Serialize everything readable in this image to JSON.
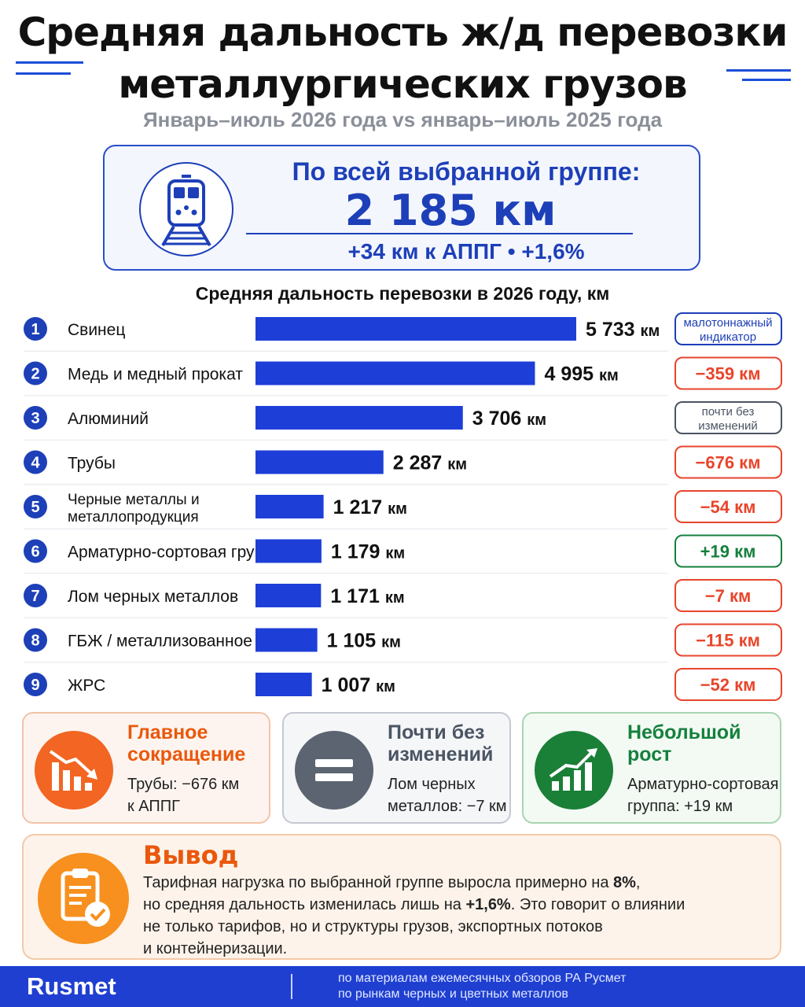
{
  "header": {
    "title_line1": "Средняя дальность ж/д перевозки",
    "title_line2": "металлургических грузов",
    "subtitle": "Январь–июль 2026 года vs январь–июль 2025 года"
  },
  "summary": {
    "label": "По всей выбранной группе:",
    "value": "2 185 км",
    "change": "+34 км к АППГ  •  +1,6%",
    "icon": "train-icon"
  },
  "chart_data": {
    "type": "bar",
    "orientation": "horizontal",
    "title": "Средняя дальность перевозки в 2026 году, км",
    "unit": "км",
    "categories": [
      "Свинец",
      "Медь и медный прокат",
      "Алюминий",
      "Трубы",
      "Черные металлы и металлопродукция",
      "Арматурно-сортовая группа",
      "Лом черных металлов",
      "ГБЖ / металлизованное сырье",
      "ЖРС"
    ],
    "category_lines": [
      [
        "Свинец"
      ],
      [
        "Медь и медный прокат"
      ],
      [
        "Алюминий"
      ],
      [
        "Трубы"
      ],
      [
        "Черные металлы и",
        "металлопродукция"
      ],
      [
        "Арматурно-сортовая группа"
      ],
      [
        "Лом черных металлов"
      ],
      [
        "ГБЖ / металлизованное сырье"
      ],
      [
        "ЖРС"
      ]
    ],
    "values": [
      5733,
      4995,
      3706,
      2287,
      1217,
      1179,
      1171,
      1105,
      1007
    ],
    "value_labels": [
      "5 733",
      "4 995",
      "3 706",
      "2 287",
      "1 217",
      "1 179",
      "1 171",
      "1 105",
      "1 007"
    ],
    "ranks": [
      "1",
      "2",
      "3",
      "4",
      "5",
      "6",
      "7",
      "8",
      "9"
    ],
    "changes": [
      {
        "lines": [
          "малотоннажный",
          "индикатор"
        ],
        "tone": "blue"
      },
      {
        "lines": [
          "−359 км"
        ],
        "tone": "red"
      },
      {
        "lines": [
          "почти без",
          "изменений"
        ],
        "tone": "gray"
      },
      {
        "lines": [
          "−676 км"
        ],
        "tone": "red"
      },
      {
        "lines": [
          "−54 км"
        ],
        "tone": "red"
      },
      {
        "lines": [
          "+19 км"
        ],
        "tone": "green"
      },
      {
        "lines": [
          "−7 км"
        ],
        "tone": "red"
      },
      {
        "lines": [
          "−115 км"
        ],
        "tone": "red"
      },
      {
        "lines": [
          "−52 км"
        ],
        "tone": "red"
      }
    ],
    "bar_color": "#1d3fd8",
    "colors": {
      "red": "#e8452c",
      "green": "#15803d",
      "gray": "#4b5563",
      "blue": "#1d3fb8"
    }
  },
  "cards": {
    "decline": {
      "title_l1": "Главное",
      "title_l2": "сокращение",
      "text_l1": "Трубы: −676 км",
      "text_l2": "к АППГ",
      "icon": "declining-chart-icon"
    },
    "stable": {
      "title_l1": "Почти без",
      "title_l2": "изменений",
      "text_l1": "Лом черных",
      "text_l2": "металлов: −7 км",
      "icon": "equals-icon"
    },
    "growth": {
      "title_l1": "Небольшой",
      "title_l2": "рост",
      "text_l1": "Арматурно-сортовая",
      "text_l2": "группа: +19 км",
      "icon": "growth-chart-icon"
    }
  },
  "conclusion": {
    "heading": "Вывод",
    "line1_a": "Тарифная нагрузка по выбранной группе выросла примерно на ",
    "line1_b": "8%",
    "line1_c": ",",
    "line2_a": "но средняя дальность изменилась лишь на ",
    "line2_b": "+1,6%",
    "line2_c": ". Это говорит о влиянии",
    "line3": "не только тарифов, но и структуры грузов, экспортных потоков",
    "line4": "и контейнеризации.",
    "icon": "clipboard-check-icon"
  },
  "footer": {
    "brand": "Rusmet",
    "note_l1": "по материалам ежемесячных обзоров РА Русмет",
    "note_l2": "по рынкам черных и цветных металлов"
  }
}
